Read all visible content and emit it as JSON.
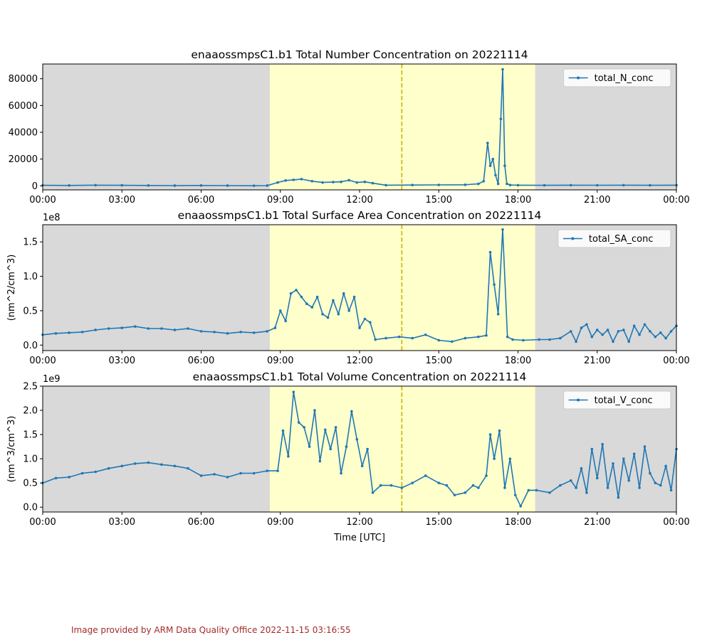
{
  "credit": "Image provided by ARM Data Quality Office 2022-11-15 03:16:55",
  "shared_xlabel": "Time [UTC]",
  "colors": {
    "series": "#1f77b4",
    "night_shade": "#d9d9d9",
    "day_shade": "#ffffcc",
    "noon_line": "#c8b400",
    "legend_border": "#cccccc"
  },
  "chart_data": [
    {
      "type": "line",
      "title": "enaaossmpsC1.b1 Total Number Concentration on 20221114",
      "xlabel": "",
      "ylabel": "",
      "multiplier": "",
      "x_unit": "hours since 00:00 UTC",
      "xlim": [
        0,
        24
      ],
      "ylim": [
        -3000,
        91000
      ],
      "xticks": [
        "00:00",
        "03:00",
        "06:00",
        "09:00",
        "12:00",
        "15:00",
        "18:00",
        "21:00",
        "00:00"
      ],
      "yticks": [
        0,
        20000,
        40000,
        60000,
        80000
      ],
      "ytick_labels": [
        "0",
        "20000",
        "40000",
        "60000",
        "80000"
      ],
      "legend": "upper right",
      "day_shading": [
        8.6,
        18.65
      ],
      "solar_noon": 13.6,
      "series": [
        {
          "name": "total_N_conc",
          "x": [
            0,
            1,
            2,
            3,
            4,
            5,
            6,
            7,
            8,
            8.5,
            8.9,
            9.2,
            9.5,
            9.8,
            10.2,
            10.6,
            11,
            11.3,
            11.6,
            11.9,
            12.2,
            12.5,
            13,
            14,
            15,
            16,
            16.5,
            16.7,
            16.85,
            16.95,
            17.05,
            17.15,
            17.25,
            17.35,
            17.42,
            17.5,
            17.58,
            17.7,
            18,
            19,
            20,
            21,
            22,
            23,
            24
          ],
          "y": [
            400,
            300,
            500,
            400,
            300,
            200,
            300,
            200,
            100,
            200,
            2500,
            4000,
            4500,
            5000,
            3500,
            2500,
            2800,
            3000,
            4200,
            2500,
            3000,
            2000,
            500,
            600,
            700,
            800,
            1500,
            3500,
            32000,
            15000,
            20000,
            8000,
            1500,
            50000,
            87000,
            15000,
            1500,
            600,
            500,
            400,
            500,
            450,
            500,
            400,
            500
          ]
        }
      ]
    },
    {
      "type": "line",
      "title": "enaaossmpsC1.b1 Total Surface Area Concentration on 20221114",
      "xlabel": "",
      "ylabel": "(nm^2/cm^3)",
      "multiplier": "1e8",
      "x_unit": "hours since 00:00 UTC",
      "xlim": [
        0,
        24
      ],
      "ylim": [
        -0.08,
        1.75
      ],
      "xticks": [
        "00:00",
        "03:00",
        "06:00",
        "09:00",
        "12:00",
        "15:00",
        "18:00",
        "21:00",
        "00:00"
      ],
      "yticks": [
        0,
        0.5,
        1.0,
        1.5
      ],
      "ytick_labels": [
        "0.0",
        "0.5",
        "1.0",
        "1.5"
      ],
      "legend": "upper right",
      "day_shading": [
        8.6,
        18.65
      ],
      "solar_noon": 13.6,
      "series": [
        {
          "name": "total_SA_conc",
          "x": [
            0,
            0.5,
            1,
            1.5,
            2,
            2.5,
            3,
            3.5,
            4,
            4.5,
            5,
            5.5,
            6,
            6.5,
            7,
            7.5,
            8,
            8.5,
            8.8,
            9,
            9.2,
            9.4,
            9.6,
            9.8,
            10,
            10.2,
            10.4,
            10.6,
            10.8,
            11,
            11.2,
            11.4,
            11.6,
            11.8,
            12,
            12.2,
            12.4,
            12.6,
            13,
            13.5,
            14,
            14.5,
            15,
            15.5,
            16,
            16.5,
            16.8,
            16.95,
            17.1,
            17.25,
            17.42,
            17.6,
            17.8,
            18.2,
            18.8,
            19.2,
            19.6,
            20,
            20.2,
            20.4,
            20.6,
            20.8,
            21,
            21.2,
            21.4,
            21.6,
            21.8,
            22,
            22.2,
            22.4,
            22.6,
            22.8,
            23,
            23.2,
            23.4,
            23.6,
            23.8,
            24
          ],
          "y": [
            0.15,
            0.17,
            0.18,
            0.19,
            0.22,
            0.24,
            0.25,
            0.27,
            0.24,
            0.24,
            0.22,
            0.24,
            0.2,
            0.19,
            0.17,
            0.19,
            0.18,
            0.2,
            0.25,
            0.5,
            0.35,
            0.75,
            0.8,
            0.7,
            0.6,
            0.55,
            0.7,
            0.45,
            0.4,
            0.65,
            0.45,
            0.75,
            0.5,
            0.7,
            0.25,
            0.38,
            0.33,
            0.08,
            0.1,
            0.12,
            0.1,
            0.15,
            0.07,
            0.05,
            0.1,
            0.12,
            0.14,
            1.35,
            0.88,
            0.45,
            1.68,
            0.12,
            0.08,
            0.07,
            0.08,
            0.08,
            0.1,
            0.2,
            0.05,
            0.25,
            0.3,
            0.12,
            0.22,
            0.15,
            0.22,
            0.05,
            0.2,
            0.22,
            0.05,
            0.28,
            0.15,
            0.3,
            0.2,
            0.12,
            0.18,
            0.1,
            0.2,
            0.28
          ]
        }
      ]
    },
    {
      "type": "line",
      "title": "enaaossmpsC1.b1 Total Volume Concentration on 20221114",
      "xlabel": "Time [UTC]",
      "ylabel": "(nm^3/cm^3)",
      "multiplier": "1e9",
      "x_unit": "hours since 00:00 UTC",
      "xlim": [
        0,
        24
      ],
      "ylim": [
        -0.1,
        2.5
      ],
      "xticks": [
        "00:00",
        "03:00",
        "06:00",
        "09:00",
        "12:00",
        "15:00",
        "18:00",
        "21:00",
        "00:00"
      ],
      "yticks": [
        0,
        0.5,
        1.0,
        1.5,
        2.0,
        2.5
      ],
      "ytick_labels": [
        "0.0",
        "0.5",
        "1.0",
        "1.5",
        "2.0",
        "2.5"
      ],
      "legend": "upper right",
      "day_shading": [
        8.6,
        18.65
      ],
      "solar_noon": 13.6,
      "series": [
        {
          "name": "total_V_conc",
          "x": [
            0,
            0.5,
            1,
            1.5,
            2,
            2.5,
            3,
            3.5,
            4,
            4.5,
            5,
            5.5,
            6,
            6.5,
            7,
            7.5,
            8,
            8.5,
            8.9,
            9.1,
            9.3,
            9.5,
            9.7,
            9.9,
            10.1,
            10.3,
            10.5,
            10.7,
            10.9,
            11.1,
            11.3,
            11.5,
            11.7,
            11.9,
            12.1,
            12.3,
            12.5,
            12.8,
            13.2,
            13.6,
            14,
            14.5,
            15,
            15.3,
            15.6,
            16,
            16.3,
            16.5,
            16.8,
            16.95,
            17.1,
            17.3,
            17.5,
            17.7,
            17.9,
            18.1,
            18.4,
            18.7,
            19.2,
            19.6,
            20,
            20.2,
            20.4,
            20.6,
            20.8,
            21,
            21.2,
            21.4,
            21.6,
            21.8,
            22,
            22.2,
            22.4,
            22.6,
            22.8,
            23,
            23.2,
            23.4,
            23.6,
            23.8,
            24
          ],
          "y": [
            0.5,
            0.6,
            0.62,
            0.7,
            0.73,
            0.8,
            0.85,
            0.9,
            0.92,
            0.88,
            0.85,
            0.8,
            0.65,
            0.68,
            0.62,
            0.7,
            0.7,
            0.75,
            0.75,
            1.58,
            1.05,
            2.38,
            1.75,
            1.65,
            1.25,
            2.0,
            0.95,
            1.6,
            1.2,
            1.65,
            0.7,
            1.25,
            1.98,
            1.4,
            0.85,
            1.2,
            0.3,
            0.45,
            0.45,
            0.4,
            0.5,
            0.65,
            0.5,
            0.45,
            0.25,
            0.3,
            0.45,
            0.4,
            0.65,
            1.5,
            1.0,
            1.58,
            0.4,
            1.0,
            0.25,
            0.02,
            0.35,
            0.35,
            0.3,
            0.45,
            0.55,
            0.4,
            0.8,
            0.3,
            1.2,
            0.6,
            1.3,
            0.4,
            0.9,
            0.2,
            1.0,
            0.55,
            1.1,
            0.4,
            1.25,
            0.7,
            0.5,
            0.45,
            0.85,
            0.35,
            1.2
          ]
        }
      ]
    }
  ]
}
